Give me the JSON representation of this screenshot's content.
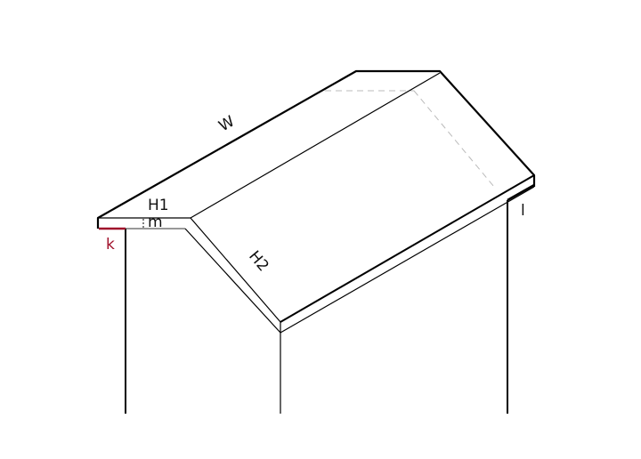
{
  "labels": {
    "w": "W",
    "h1": "H1",
    "m": "m",
    "h2": "H2",
    "k": "k",
    "l": "l"
  },
  "colors": {
    "line": "#000000",
    "hidden_edge": "#bbbbbb",
    "highlight": "#a0102a"
  }
}
